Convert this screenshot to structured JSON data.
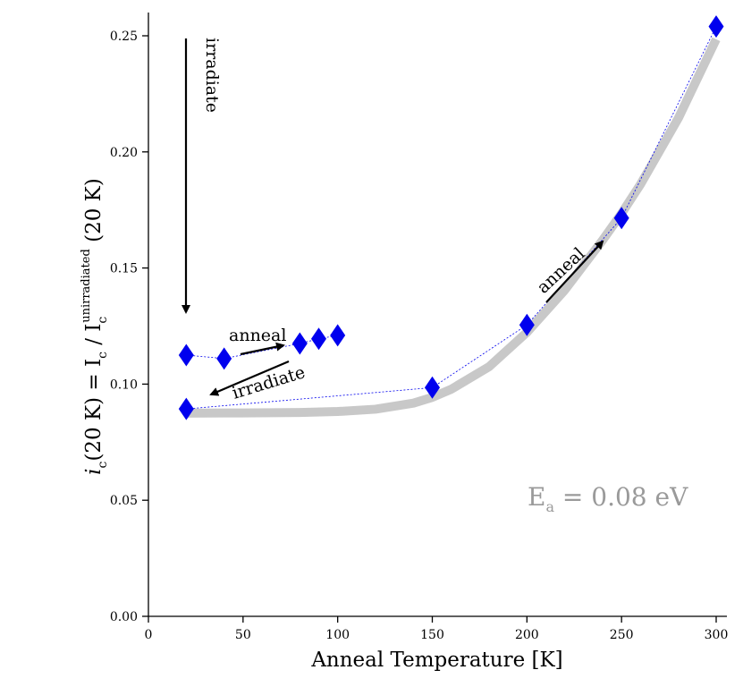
{
  "chart_data": {
    "type": "scatter",
    "xlabel": "Anneal Temperature [K]",
    "ylabel": "i_c(20 K) = I_c / I_c^unirradiated (20 K)",
    "ylabel_parts": {
      "main": "i",
      "main_sub": "c",
      "paren": "(20 K) = I",
      "ic_sub": "c",
      "slash": " / I",
      "ic2_sub": "c",
      "ic2_sup": "unirradiated",
      "tail": " (20 K)"
    },
    "xlim": [
      0,
      305
    ],
    "ylim": [
      0,
      0.26
    ],
    "xticks": [
      0,
      50,
      100,
      150,
      200,
      250,
      300
    ],
    "yticks": [
      0.0,
      0.05,
      0.1,
      0.15,
      0.2,
      0.25
    ],
    "xtick_labels": [
      "0",
      "50",
      "100",
      "150",
      "200",
      "250",
      "300"
    ],
    "ytick_labels": [
      "0.00",
      "0.05",
      "0.10",
      "0.15",
      "0.20",
      "0.25"
    ],
    "grid": false,
    "series": [
      {
        "marker": "diamond",
        "color": "#0000ee",
        "line": "dotted",
        "x": [
          20,
          40,
          80,
          90,
          100
        ],
        "y": [
          0.1125,
          0.111,
          0.1175,
          0.1195,
          0.121
        ]
      },
      {
        "marker": "diamond",
        "color": "#0000ee",
        "line": "dotted",
        "x": [
          20,
          150,
          200,
          250,
          300
        ],
        "y": [
          0.0893,
          0.0985,
          0.1255,
          0.1715,
          0.254
        ]
      },
      {
        "marker": "none",
        "color": "#c8c8c8",
        "line": "fit",
        "x": [
          20,
          50,
          80,
          100,
          120,
          140,
          150,
          160,
          180,
          200,
          220,
          240,
          250,
          260,
          280,
          300
        ],
        "y": [
          0.0875,
          0.0876,
          0.0878,
          0.0882,
          0.0892,
          0.0918,
          0.0943,
          0.0978,
          0.1075,
          0.1223,
          0.1405,
          0.162,
          0.1735,
          0.186,
          0.2145,
          0.2485
        ]
      }
    ],
    "annotations": [
      {
        "text": "irradiate",
        "id": "irradiate-top"
      },
      {
        "text": "anneal",
        "id": "anneal-left"
      },
      {
        "text": "irradiate",
        "id": "irradiate-mid"
      },
      {
        "text": "anneal",
        "id": "anneal-right"
      }
    ],
    "energy_label": {
      "text": "E",
      "sub": "a",
      "value": " = 0.08 eV",
      "color": "#9a9a9a"
    }
  }
}
